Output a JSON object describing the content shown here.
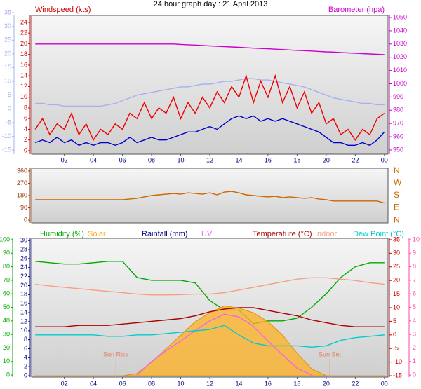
{
  "chart_data": [
    {
      "type": "line",
      "title": "24 hour graph day : 21 April 2013",
      "ylabel": "Windspeed (kts)",
      "y2label": "Barometer (hpa)",
      "xlim": [
        -0.25,
        24.25
      ],
      "xticks": [
        {
          "value": 2,
          "label": "02"
        },
        {
          "value": 4,
          "label": "04"
        },
        {
          "value": 6,
          "label": "06"
        },
        {
          "value": 8,
          "label": "08"
        },
        10,
        12,
        14,
        16,
        18,
        20,
        22,
        {
          "value": 24,
          "label": "00"
        }
      ],
      "x": [
        0,
        0.5,
        1,
        1.5,
        2,
        2.5,
        3,
        3.5,
        4,
        4.5,
        5,
        5.5,
        6,
        6.5,
        7,
        7.5,
        8,
        8.5,
        9,
        9.5,
        10,
        10.5,
        11,
        11.5,
        12,
        12.5,
        13,
        13.5,
        14,
        14.5,
        15,
        15.5,
        16,
        16.5,
        17,
        17.5,
        18,
        18.5,
        19,
        19.5,
        20,
        20.5,
        21,
        21.5,
        22,
        22.5,
        23,
        23.5,
        24
      ],
      "ylim": [
        -0.66,
        25.3
      ],
      "yticks": [
        0,
        2,
        4,
        6,
        8,
        10,
        12,
        14,
        16,
        18,
        20,
        22,
        24
      ],
      "y2lim": [
        946.8,
        1051.6
      ],
      "y2ticks": [
        950,
        960,
        970,
        980,
        990,
        1000,
        1010,
        1020,
        1030,
        1040,
        1050
      ],
      "y3lim": [
        -16.5,
        34
      ],
      "y3ticks": [
        -15,
        -10,
        -5,
        0,
        5,
        10,
        15,
        20,
        25,
        30,
        35
      ],
      "axis_colors": {
        "y": "#cc0000",
        "y2": "#cc00cc",
        "y3": "#a8b0ee"
      },
      "series": [
        {
          "axis": "y3",
          "color": "#a8b0ee",
          "values": [
            2,
            2,
            1.5,
            1.5,
            1,
            1,
            1,
            1,
            1,
            1,
            1.5,
            2,
            3,
            4,
            5,
            5.5,
            6,
            6.5,
            7,
            7.5,
            8,
            8,
            8.5,
            9,
            9,
            9.5,
            10,
            10,
            10.5,
            11,
            11,
            10.5,
            10.5,
            10,
            9.5,
            9,
            8.5,
            8,
            7,
            6,
            5,
            4,
            3.5,
            3,
            2.5,
            2,
            2,
            1.5,
            1.5
          ]
        },
        {
          "axis": "y2",
          "color": "#cc00cc",
          "values": [
            1030,
            1030,
            1030,
            1030,
            1030,
            1030,
            1030,
            1030,
            1030,
            1030,
            1030,
            1030,
            1030,
            1030,
            1030,
            1030,
            1030,
            1030,
            1030,
            1030,
            1029.7,
            1029.4,
            1029.2,
            1028.9,
            1028.6,
            1028.3,
            1028.0,
            1027.8,
            1027.5,
            1027.2,
            1026.9,
            1026.6,
            1026.4,
            1026.1,
            1025.8,
            1025.5,
            1025.2,
            1025.0,
            1024.7,
            1024.4,
            1024.1,
            1023.9,
            1023.6,
            1023.3,
            1023.0,
            1022.7,
            1022.5,
            1022.2,
            1022.0
          ]
        },
        {
          "axis": "y",
          "color": "#ee0000",
          "values": [
            4,
            6,
            3,
            5,
            4,
            7,
            3,
            5,
            2,
            4,
            3,
            5,
            4,
            7,
            6,
            9,
            6,
            8,
            7,
            10,
            6,
            9,
            7,
            10,
            8,
            11,
            9,
            12,
            10,
            14,
            9,
            13,
            10,
            14,
            9,
            12,
            8,
            11,
            7,
            9,
            5,
            6,
            3,
            4,
            2,
            4,
            3,
            6,
            7
          ]
        },
        {
          "axis": "y",
          "color": "#0000cc",
          "values": [
            1.5,
            2,
            1.5,
            2.5,
            1.5,
            2,
            1,
            1.5,
            1,
            1.5,
            1.5,
            1,
            1.5,
            2.5,
            1.5,
            2,
            2.5,
            2,
            2,
            2.5,
            3,
            3.5,
            3.5,
            4,
            4.5,
            4,
            5,
            6,
            6.5,
            6,
            6.5,
            5.5,
            6,
            5.5,
            6,
            5.5,
            5,
            4.5,
            4,
            3.5,
            2.5,
            1.5,
            1.5,
            1,
            1,
            1.5,
            1,
            2,
            3.5
          ]
        }
      ]
    },
    {
      "type": "line",
      "xlim": [
        -0.25,
        24.25
      ],
      "x": [
        0,
        0.5,
        1,
        1.5,
        2,
        2.5,
        3,
        3.5,
        4,
        4.5,
        5,
        5.5,
        6,
        6.5,
        7,
        7.5,
        8,
        8.5,
        9,
        9.5,
        10,
        10.5,
        11,
        11.5,
        12,
        12.5,
        13,
        13.5,
        14,
        14.5,
        15,
        15.5,
        16,
        16.5,
        17,
        17.5,
        18,
        18.5,
        19,
        19.5,
        20,
        20.5,
        21,
        21.5,
        22,
        22.5,
        23,
        23.5,
        24
      ],
      "ylim": [
        -20,
        380
      ],
      "yticks": [
        0,
        90,
        180,
        270,
        360
      ],
      "y2ticks": [
        {
          "value": 0,
          "label": "N"
        },
        {
          "value": 90,
          "label": "E"
        },
        {
          "value": 180,
          "label": "S"
        },
        {
          "value": 270,
          "label": "W"
        },
        {
          "value": 360,
          "label": "N"
        }
      ],
      "axis_colors": {
        "y": "#993300",
        "y2": "#cc6600"
      },
      "series": [
        {
          "axis": "y",
          "color": "#cc6600",
          "values": [
            150,
            150,
            150,
            150,
            150,
            150,
            150,
            150,
            150,
            150,
            150,
            150,
            150,
            155,
            160,
            170,
            180,
            185,
            190,
            195,
            190,
            200,
            195,
            190,
            200,
            185,
            205,
            210,
            200,
            185,
            180,
            175,
            170,
            175,
            165,
            170,
            165,
            160,
            165,
            155,
            150,
            140,
            140,
            140,
            140,
            140,
            140,
            140,
            125
          ]
        }
      ]
    },
    {
      "type": "line",
      "xlim": [
        -0.25,
        24.25
      ],
      "xticks": [
        {
          "value": 2,
          "label": "02"
        },
        {
          "value": 4,
          "label": "04"
        },
        {
          "value": 6,
          "label": "06"
        },
        {
          "value": 8,
          "label": "08"
        },
        10,
        12,
        14,
        16,
        18,
        20,
        22,
        {
          "value": 24,
          "label": "00"
        }
      ],
      "x": [
        0,
        1,
        2,
        3,
        4,
        5,
        6,
        7,
        8,
        9,
        10,
        11,
        12,
        13,
        14,
        15,
        16,
        17,
        18,
        19,
        20,
        21,
        22,
        23,
        24
      ],
      "y2label": "Rainfall (mm)",
      "ylim": [
        -1.5,
        101
      ],
      "yticks": [
        0,
        10,
        20,
        30,
        40,
        50,
        60,
        70,
        80,
        90,
        100
      ],
      "y2lim": [
        -0.3,
        30.5
      ],
      "y2ticks": [
        0,
        2,
        4,
        6,
        8,
        10,
        12,
        14,
        16,
        18,
        20,
        22,
        24,
        26,
        28,
        30
      ],
      "y3lim": [
        -15.5,
        35.5
      ],
      "y3ticks": [
        -15,
        -10,
        -5,
        0,
        5,
        10,
        15,
        20,
        25,
        30,
        35
      ],
      "y4lim": [
        -0.15,
        10.1
      ],
      "y4ticks": [
        0,
        1,
        2,
        3,
        4,
        5,
        6,
        7,
        8,
        9,
        10
      ],
      "axis_colors": {
        "y": "#00aa00",
        "y2": "#000080",
        "y3": "#cc0000",
        "y4": "#ff44aa"
      },
      "annotations": [
        {
          "text": "Sun Rise",
          "x": 5.55
        },
        {
          "text": "Sun Set",
          "x": 20.25
        }
      ],
      "series": [
        {
          "name": "Humidity (%)",
          "axis": "y",
          "color": "#00aa00",
          "values": [
            84,
            83,
            82,
            82,
            83,
            84,
            84,
            72,
            70,
            70,
            70,
            68,
            55,
            48,
            48,
            38,
            40,
            40,
            42,
            50,
            60,
            72,
            80,
            83,
            83
          ]
        },
        {
          "name": "Solar",
          "kind": "area",
          "axis": "y2",
          "color": "#ffb020",
          "values": [
            0,
            0,
            0,
            0,
            0,
            0,
            0,
            0.5,
            3,
            6,
            9,
            12,
            14,
            15.5,
            15,
            14,
            12,
            9,
            5,
            1.5,
            0,
            0,
            0,
            0,
            0
          ]
        },
        {
          "name": "UV",
          "axis": "y4",
          "color": "#ee66ee",
          "values": [
            null,
            null,
            null,
            null,
            null,
            null,
            null,
            0,
            1,
            1.8,
            2.5,
            3.3,
            4,
            4.5,
            4.3,
            3.6,
            2.5,
            1.5,
            0.5,
            0,
            null,
            null,
            null,
            null,
            null
          ]
        },
        {
          "name": "Temperature (°C)",
          "axis": "y3",
          "color": "#aa0000",
          "values": [
            3,
            3,
            3,
            3.5,
            3.5,
            3.5,
            4,
            4.5,
            5,
            5.5,
            6,
            7,
            8.5,
            9.5,
            10,
            10,
            9,
            8,
            7,
            5.5,
            4.5,
            3.5,
            3,
            3,
            3
          ]
        },
        {
          "name": "Indoor",
          "axis": "y3",
          "color": "#f4a080",
          "values": [
            18.6,
            18,
            17.5,
            17,
            16.5,
            16,
            15.5,
            15,
            14.7,
            14.7,
            14.8,
            15,
            15,
            15.5,
            16.5,
            17.5,
            18.5,
            19.5,
            20.5,
            21,
            21,
            20.5,
            20,
            19.2,
            18.6
          ]
        },
        {
          "name": "Dew Point (°C)",
          "axis": "y3",
          "color": "#00cccc",
          "values": [
            0,
            0,
            0,
            0,
            0,
            -0.5,
            -0.5,
            0,
            0,
            0.5,
            1,
            1.5,
            2,
            3.5,
            0,
            -3,
            -4,
            -4,
            -4,
            -4.5,
            -4,
            -2,
            -1,
            -0.5,
            0
          ]
        }
      ]
    }
  ]
}
